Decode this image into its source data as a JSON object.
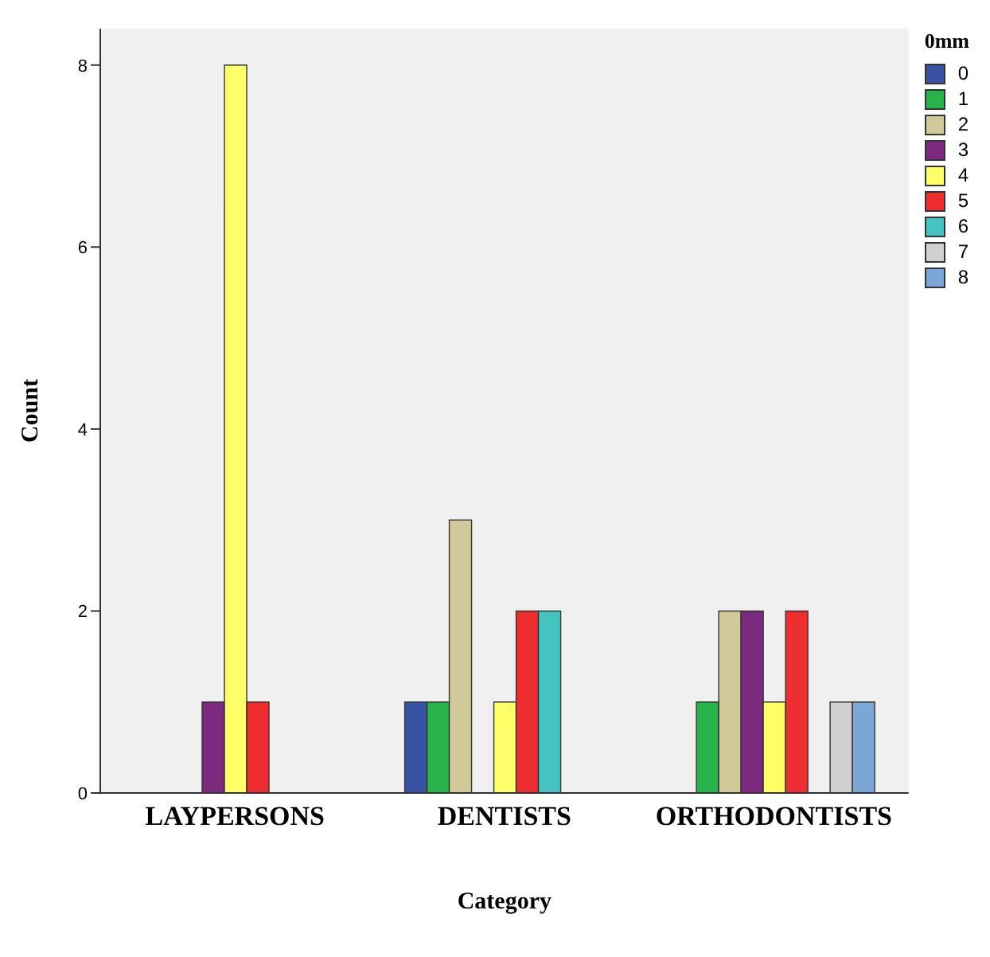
{
  "chart_data": {
    "type": "bar",
    "xlabel": "Category",
    "ylabel": "Count",
    "legend_title": "0mm",
    "categories": [
      "LAYPERSONS",
      "DENTISTS",
      "ORTHODONTISTS"
    ],
    "series": [
      {
        "name": "0",
        "color": "#3953a4",
        "values": [
          null,
          1,
          null
        ]
      },
      {
        "name": "1",
        "color": "#27b24a",
        "values": [
          null,
          1,
          1
        ]
      },
      {
        "name": "2",
        "color": "#d2c99a",
        "values": [
          null,
          3,
          2
        ]
      },
      {
        "name": "3",
        "color": "#7b2a7f",
        "values": [
          1,
          null,
          2
        ]
      },
      {
        "name": "4",
        "color": "#ffff66",
        "values": [
          8,
          1,
          1
        ]
      },
      {
        "name": "5",
        "color": "#ee2e2e",
        "values": [
          1,
          2,
          2
        ]
      },
      {
        "name": "6",
        "color": "#45c3c3",
        "values": [
          null,
          2,
          null
        ]
      },
      {
        "name": "7",
        "color": "#d0d0d0",
        "values": [
          null,
          null,
          1
        ]
      },
      {
        "name": "8",
        "color": "#7aa6d8",
        "values": [
          null,
          null,
          1
        ]
      }
    ],
    "ylim": [
      0,
      8.4
    ],
    "yticks": [
      0,
      2,
      4,
      6,
      8
    ],
    "grid": false,
    "legend": "top right"
  }
}
